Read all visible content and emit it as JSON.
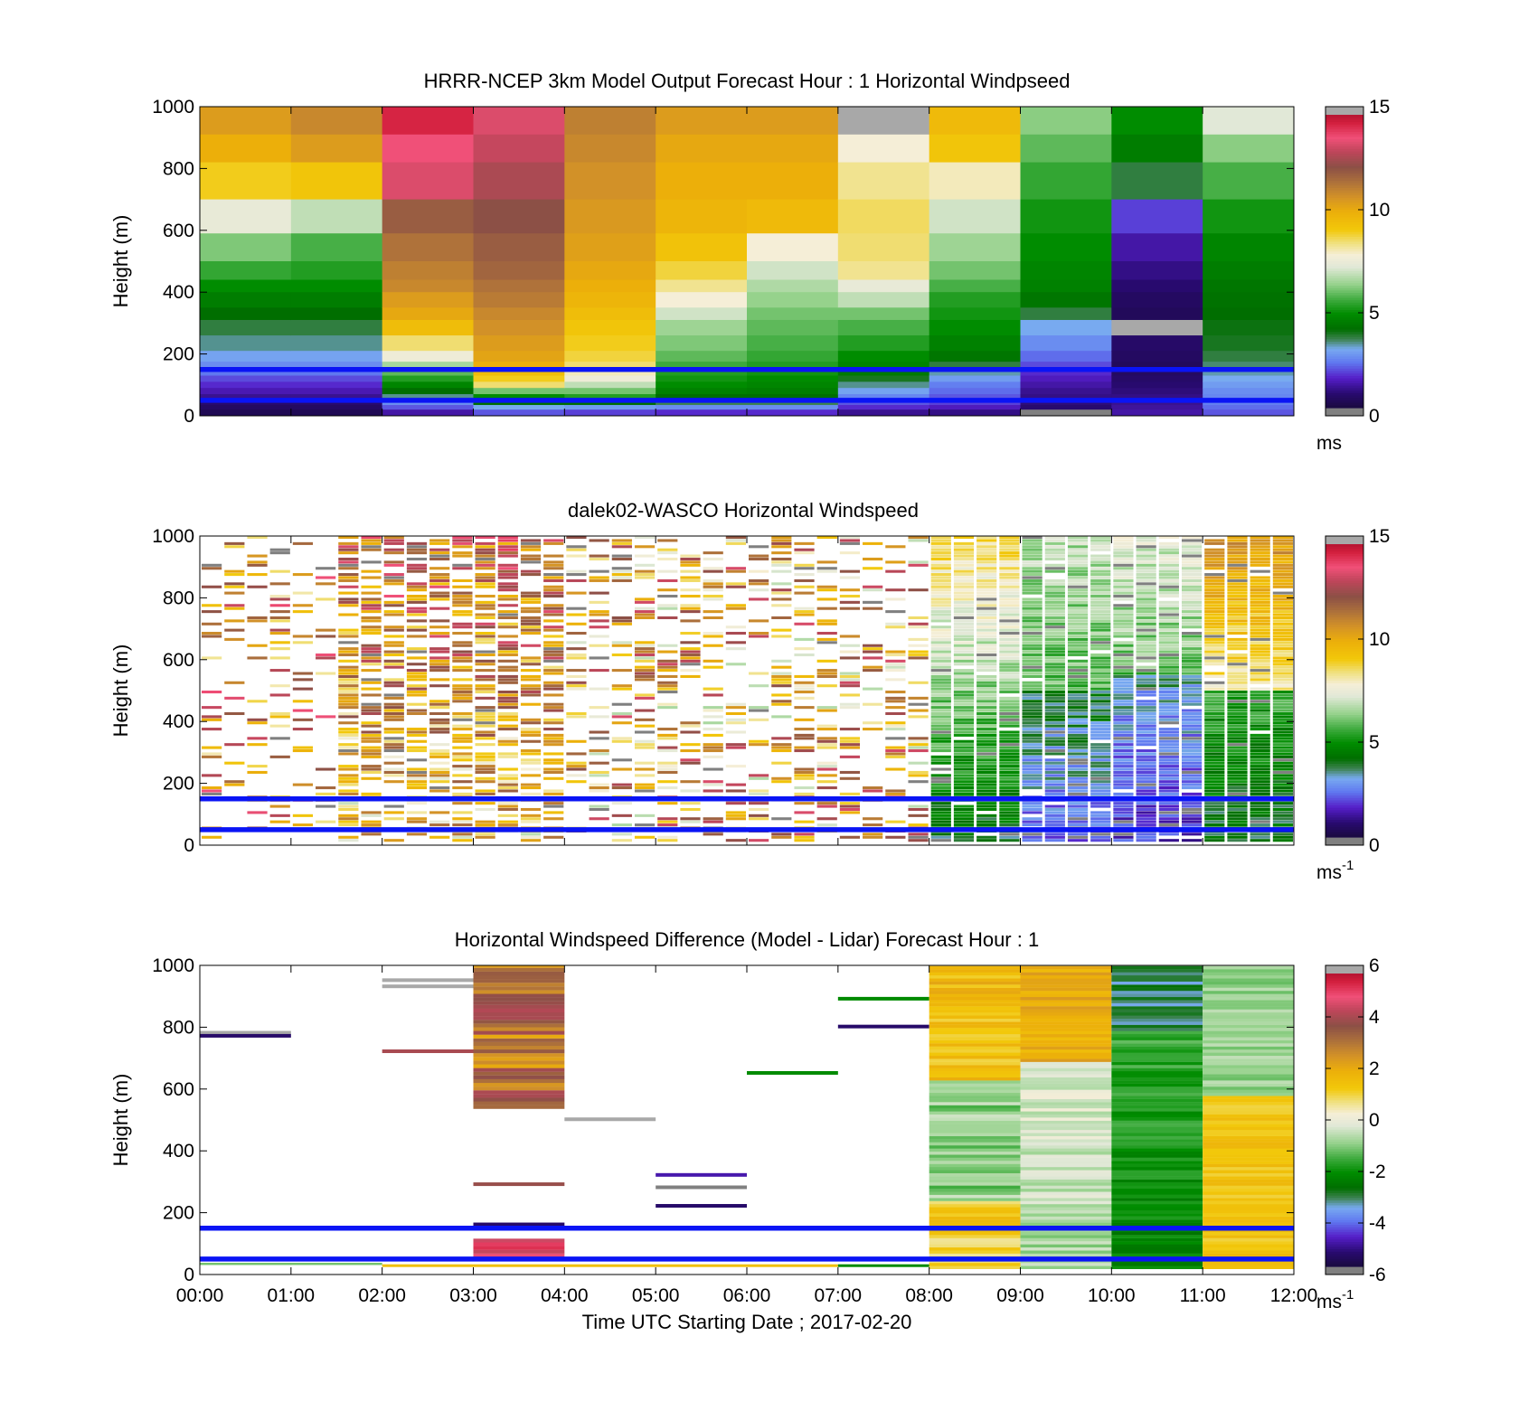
{
  "figure": {
    "xlabel": "Time UTC  Starting Date ; 2017-02-20",
    "xticks": [
      "00:00",
      "01:00",
      "02:00",
      "03:00",
      "04:00",
      "05:00",
      "06:00",
      "07:00",
      "08:00",
      "09:00",
      "10:00",
      "11:00",
      "12:00"
    ]
  },
  "chart_data": [
    {
      "type": "heatmap",
      "title": "HRRR-NCEP 3km Model Output   Forecast Hour : 1 Horizontal Windpseed",
      "ylabel": "Height (m)",
      "yticks": [
        "0",
        "200",
        "400",
        "600",
        "800",
        "1000"
      ],
      "ylim": [
        0,
        1000
      ],
      "xlim": [
        "00:00",
        "12:00"
      ],
      "colorbar": {
        "ticks": [
          "0",
          "5",
          "10",
          "15"
        ],
        "range": [
          0,
          15
        ],
        "unit": "ms",
        "unit_sup": ""
      },
      "reference_lines_m": [
        150,
        50
      ],
      "model_levels_m": [
        1000,
        910,
        820,
        700,
        590,
        500,
        440,
        400,
        350,
        310,
        260,
        210,
        175,
        150,
        130,
        110,
        90,
        70,
        50,
        35,
        20,
        0
      ],
      "columns": [
        [
          10.5,
          10.0,
          9.0,
          7.4,
          6.1,
          5.4,
          4.8,
          4.4,
          4.0,
          3.6,
          3.3,
          2.9,
          2.6,
          2.3,
          1.9,
          1.6,
          1.3,
          1.0,
          0.7,
          0.5,
          0.3
        ],
        [
          11.0,
          10.5,
          9.2,
          6.8,
          5.6,
          5.2,
          4.8,
          4.4,
          4.0,
          3.6,
          3.3,
          2.9,
          2.6,
          2.3,
          1.9,
          1.6,
          1.3,
          1.0,
          0.7,
          0.5,
          0.3
        ],
        [
          14.5,
          13.8,
          13.5,
          12.0,
          11.5,
          11.2,
          11.0,
          10.5,
          10.2,
          9.5,
          8.5,
          7.6,
          6.5,
          5.8,
          5.2,
          4.6,
          4.0,
          3.3,
          2.6,
          2.0,
          1.2
        ],
        [
          13.5,
          13.2,
          12.8,
          12.3,
          12.0,
          11.8,
          11.5,
          11.3,
          11.0,
          10.8,
          10.5,
          10.3,
          10.0,
          9.5,
          9.0,
          8.5,
          6.0,
          4.8,
          4.0,
          3.0,
          2.0
        ],
        [
          11.2,
          11.0,
          10.8,
          10.6,
          10.4,
          10.2,
          10.0,
          9.8,
          9.5,
          9.2,
          9.0,
          8.8,
          8.5,
          8.0,
          7.6,
          6.8,
          6.0,
          5.2,
          4.0,
          2.8,
          1.8
        ],
        [
          10.5,
          10.2,
          10.0,
          9.8,
          9.3,
          8.8,
          8.3,
          7.8,
          7.0,
          6.4,
          6.1,
          5.8,
          5.5,
          5.2,
          5.0,
          4.8,
          4.5,
          4.0,
          3.5,
          2.6,
          1.6
        ],
        [
          10.5,
          10.2,
          10.0,
          9.6,
          7.8,
          7.0,
          6.6,
          6.3,
          6.0,
          5.8,
          5.6,
          5.4,
          5.2,
          5.0,
          4.8,
          4.6,
          4.4,
          4.0,
          3.5,
          2.6,
          1.6
        ],
        [
          15.5,
          7.8,
          8.3,
          8.6,
          8.5,
          8.3,
          7.4,
          6.8,
          6.0,
          5.6,
          5.2,
          4.8,
          4.6,
          4.3,
          3.8,
          3.3,
          2.9,
          2.5,
          2.0,
          1.6,
          1.0
        ],
        [
          9.6,
          9.2,
          8.0,
          7.0,
          6.4,
          6.0,
          5.6,
          5.2,
          5.0,
          4.8,
          4.5,
          4.2,
          3.6,
          3.2,
          2.8,
          2.4,
          2.2,
          2.0,
          1.8,
          1.4,
          0.9
        ],
        [
          6.2,
          5.8,
          5.4,
          5.0,
          4.8,
          4.6,
          4.5,
          4.2,
          3.6,
          3.0,
          2.6,
          2.2,
          1.9,
          1.6,
          1.4,
          1.2,
          1.0,
          0.9,
          0.8,
          0.7,
          -1
        ],
        [
          4.8,
          4.4,
          3.6,
          1.8,
          1.2,
          0.9,
          0.7,
          0.5,
          0.4,
          15.5,
          0.6,
          0.5,
          0.4,
          0.5,
          0.6,
          0.7,
          0.8,
          0.9,
          1.0,
          1.1,
          1.2
        ],
        [
          7.2,
          6.2,
          5.6,
          5.0,
          4.6,
          4.4,
          4.2,
          4.1,
          4.0,
          3.9,
          3.8,
          3.6,
          3.4,
          3.2,
          3.0,
          2.8,
          2.6,
          2.5,
          2.4,
          2.2,
          2.0
        ]
      ]
    },
    {
      "type": "heatmap",
      "title": "dalek02-WASCO  Horizontal Windspeed",
      "ylabel": "Height (m)",
      "yticks": [
        "0",
        "200",
        "400",
        "600",
        "800",
        "1000"
      ],
      "ylim": [
        0,
        1000
      ],
      "xlim": [
        "00:00",
        "12:00"
      ],
      "colorbar": {
        "ticks": [
          "0",
          "5",
          "10",
          "15"
        ],
        "range": [
          0,
          15
        ],
        "unit": "ms",
        "unit_sup": "-1"
      },
      "reference_lines_m": [
        150,
        50
      ]
    },
    {
      "type": "heatmap",
      "title": "Horizontal Windspeed Difference (Model - Lidar) Forecast Hour : 1",
      "ylabel": "Height (m)",
      "yticks": [
        "0",
        "200",
        "400",
        "600",
        "800",
        "1000"
      ],
      "ylim": [
        0,
        1000
      ],
      "xlim": [
        "00:00",
        "12:00"
      ],
      "colorbar": {
        "ticks": [
          "-6",
          "-4",
          "-2",
          "0",
          "2",
          "4",
          "6"
        ],
        "range": [
          -6,
          6
        ],
        "unit": "ms",
        "unit_sup": "-1"
      },
      "reference_lines_m": [
        150,
        50
      ]
    }
  ]
}
